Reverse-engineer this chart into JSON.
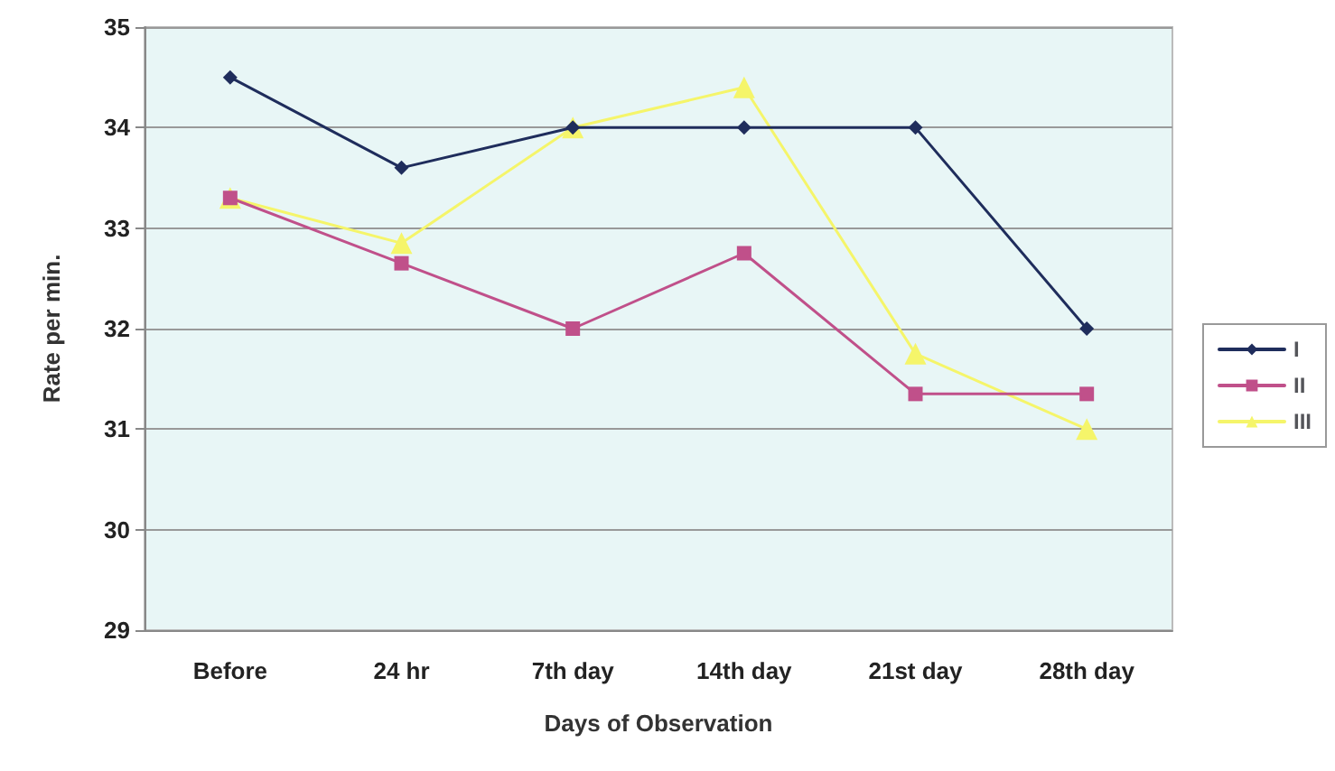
{
  "chart_data": {
    "type": "line",
    "xlabel": "Days of Observation",
    "ylabel": "Rate per min.",
    "categories": [
      "Before",
      "24 hr",
      "7th day",
      "14th day",
      "21st day",
      "28th day"
    ],
    "series": [
      {
        "name": "I",
        "color": "#1f2d5c",
        "marker": "diamond",
        "values": [
          34.5,
          33.6,
          34.0,
          34.0,
          34.0,
          32.0
        ]
      },
      {
        "name": "II",
        "color": "#c0508a",
        "marker": "square",
        "values": [
          33.3,
          32.65,
          32.0,
          32.75,
          31.35,
          31.35
        ]
      },
      {
        "name": "III",
        "color": "#f5f56a",
        "marker": "triangle",
        "values": [
          33.3,
          32.85,
          34.0,
          34.4,
          31.75,
          31.0
        ]
      }
    ],
    "ylim": [
      29,
      35
    ],
    "yticks": [
      29,
      30,
      31,
      32,
      33,
      34,
      35
    ],
    "grid": "y",
    "legend": "right",
    "line_style": "solid"
  }
}
